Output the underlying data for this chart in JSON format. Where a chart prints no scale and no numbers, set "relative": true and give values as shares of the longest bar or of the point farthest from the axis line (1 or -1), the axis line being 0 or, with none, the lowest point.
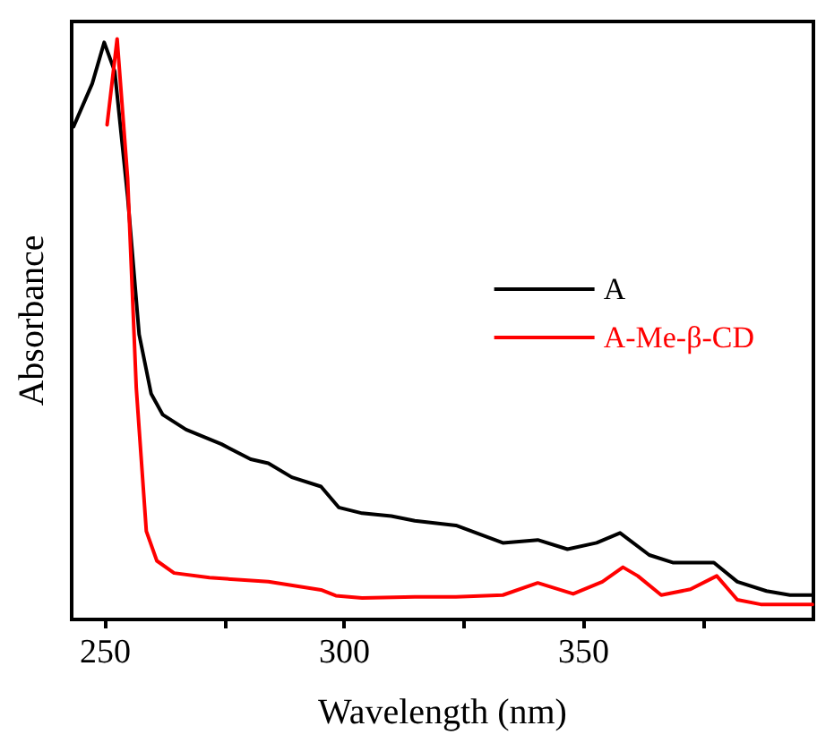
{
  "chart_data": {
    "type": "line",
    "relative": true,
    "xlabel": "Wavelength (nm)",
    "ylabel": "Absorbance",
    "xlim": [
      243,
      398
    ],
    "xticks": [
      250,
      {
        "value": 275,
        "label": null
      },
      300,
      {
        "value": 325,
        "label": null
      },
      350,
      {
        "value": 375,
        "label": null
      }
    ],
    "legend": "right",
    "grid": false,
    "marker": "none",
    "line_style": "solid",
    "series": [
      {
        "name": "A",
        "color": "#000000",
        "x": [
          243.4,
          247.3,
          249.8,
          252,
          254.7,
          257.1,
          259.6,
          262,
          266.9,
          274.3,
          280.4,
          284.1,
          289,
          295.1,
          298.8,
          303.7,
          309.8,
          314.7,
          323.3,
          333.1,
          340.4,
          346.6,
          352.7,
          357.6,
          363.7,
          368.6,
          377.2,
          382.1,
          388.2,
          393.1,
          397.8
        ],
        "values": [
          0.849,
          0.923,
          0.994,
          0.944,
          0.728,
          0.491,
          0.389,
          0.353,
          0.327,
          0.302,
          0.276,
          0.269,
          0.245,
          0.229,
          0.193,
          0.183,
          0.178,
          0.17,
          0.162,
          0.132,
          0.137,
          0.121,
          0.132,
          0.149,
          0.111,
          0.098,
          0.098,
          0.065,
          0.049,
          0.042,
          0.042
        ]
      },
      {
        "name": "A-Me-β-CD",
        "color": "#ff0000",
        "x": [
          250.4,
          252.5,
          254.7,
          256.5,
          258.6,
          260.8,
          264.4,
          271.8,
          284.1,
          295.1,
          298.2,
          303.7,
          314.7,
          323.3,
          333.1,
          340.4,
          347.8,
          353.9,
          358.2,
          361.3,
          366.2,
          372.3,
          377.8,
          382.1,
          387,
          397.8
        ],
        "values": [
          0.852,
          1.0,
          0.759,
          0.399,
          0.152,
          0.101,
          0.08,
          0.072,
          0.065,
          0.051,
          0.041,
          0.037,
          0.039,
          0.039,
          0.042,
          0.063,
          0.044,
          0.065,
          0.09,
          0.075,
          0.042,
          0.052,
          0.075,
          0.034,
          0.026,
          0.026
        ]
      }
    ]
  }
}
